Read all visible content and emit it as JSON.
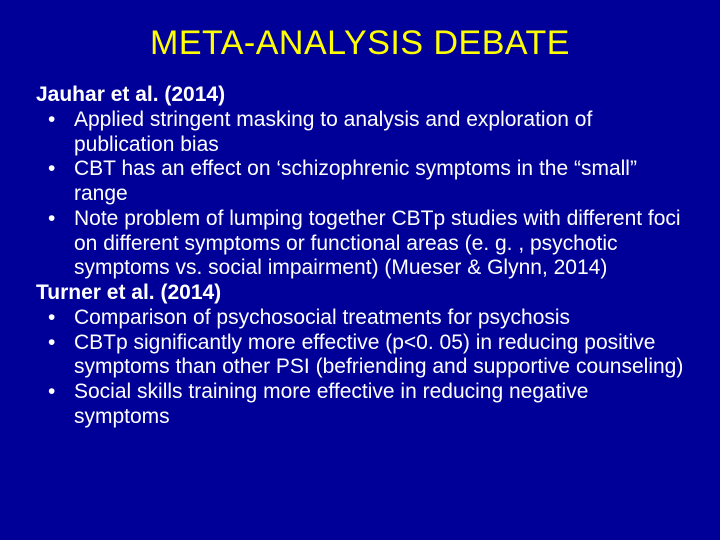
{
  "slide": {
    "title": "META-ANALYSIS DEBATE",
    "background_color": "#000099",
    "title_color": "#ffff00",
    "text_color": "#ffffff",
    "title_fontsize": 34,
    "body_fontsize": 21,
    "sections": [
      {
        "heading": "Jauhar et al. (2014)",
        "bullets": [
          "Applied stringent masking to analysis and exploration of publication bias",
          "CBT has an effect on ‘schizophrenic symptoms in the “small” range",
          "Note problem of lumping together CBTp studies with different foci on different symptoms or functional areas (e. g. , psychotic symptoms vs. social impairment) (Mueser & Glynn, 2014)"
        ]
      },
      {
        "heading": "Turner et al. (2014)",
        "bullets": [
          "Comparison of psychosocial treatments for psychosis",
          "CBTp significantly more effective (p<0. 05) in reducing positive symptoms than other PSI (befriending and supportive counseling)",
          "Social skills training more effective in reducing negative symptoms"
        ]
      }
    ]
  }
}
